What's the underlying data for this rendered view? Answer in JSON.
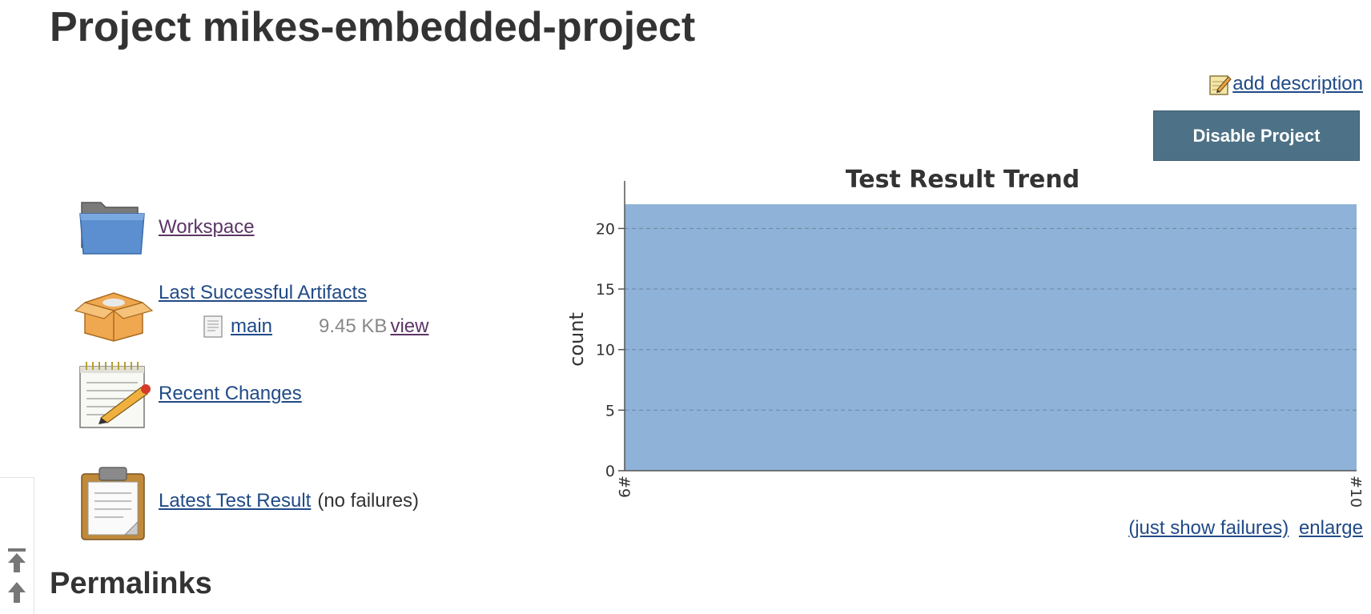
{
  "page": {
    "title": "Project mikes-embedded-project"
  },
  "actions": {
    "add_description": "add description",
    "disable_project": "Disable Project"
  },
  "tasks": [
    {
      "label": "Workspace",
      "icon": "folder-icon"
    },
    {
      "label": "Last Successful Artifacts",
      "icon": "package-icon"
    },
    {
      "label": "Recent Changes",
      "icon": "notepad-icon"
    },
    {
      "label": "Latest Test Result",
      "suffix": "(no failures)",
      "icon": "clipboard-icon"
    }
  ],
  "artifact": {
    "name": "main",
    "size": "9.45 KB",
    "view_label": "view",
    "icon": "file-icon"
  },
  "chart_data": {
    "type": "area",
    "title": "Test Result Trend",
    "xlabel": "",
    "ylabel": "count",
    "categories": [
      "#9",
      "#10"
    ],
    "series": [
      {
        "values": [
          22,
          22
        ],
        "color": "#8eb2d8"
      }
    ],
    "ylim": [
      0,
      23
    ],
    "yticks": [
      0,
      5,
      10,
      15,
      20
    ],
    "grid": true
  },
  "chart_links": {
    "just_show_failures": "(just show failures)",
    "enlarge": "enlarge"
  },
  "sections": {
    "permalinks": "Permalinks"
  },
  "colors": {
    "link": "#204a87",
    "visited_link": "#5c3566",
    "button_bg": "#4d7186",
    "area_fill": "#8eb2d8"
  },
  "scroll_tools": {
    "top_icon": "scroll-to-top-icon",
    "up_icon": "scroll-up-icon"
  }
}
